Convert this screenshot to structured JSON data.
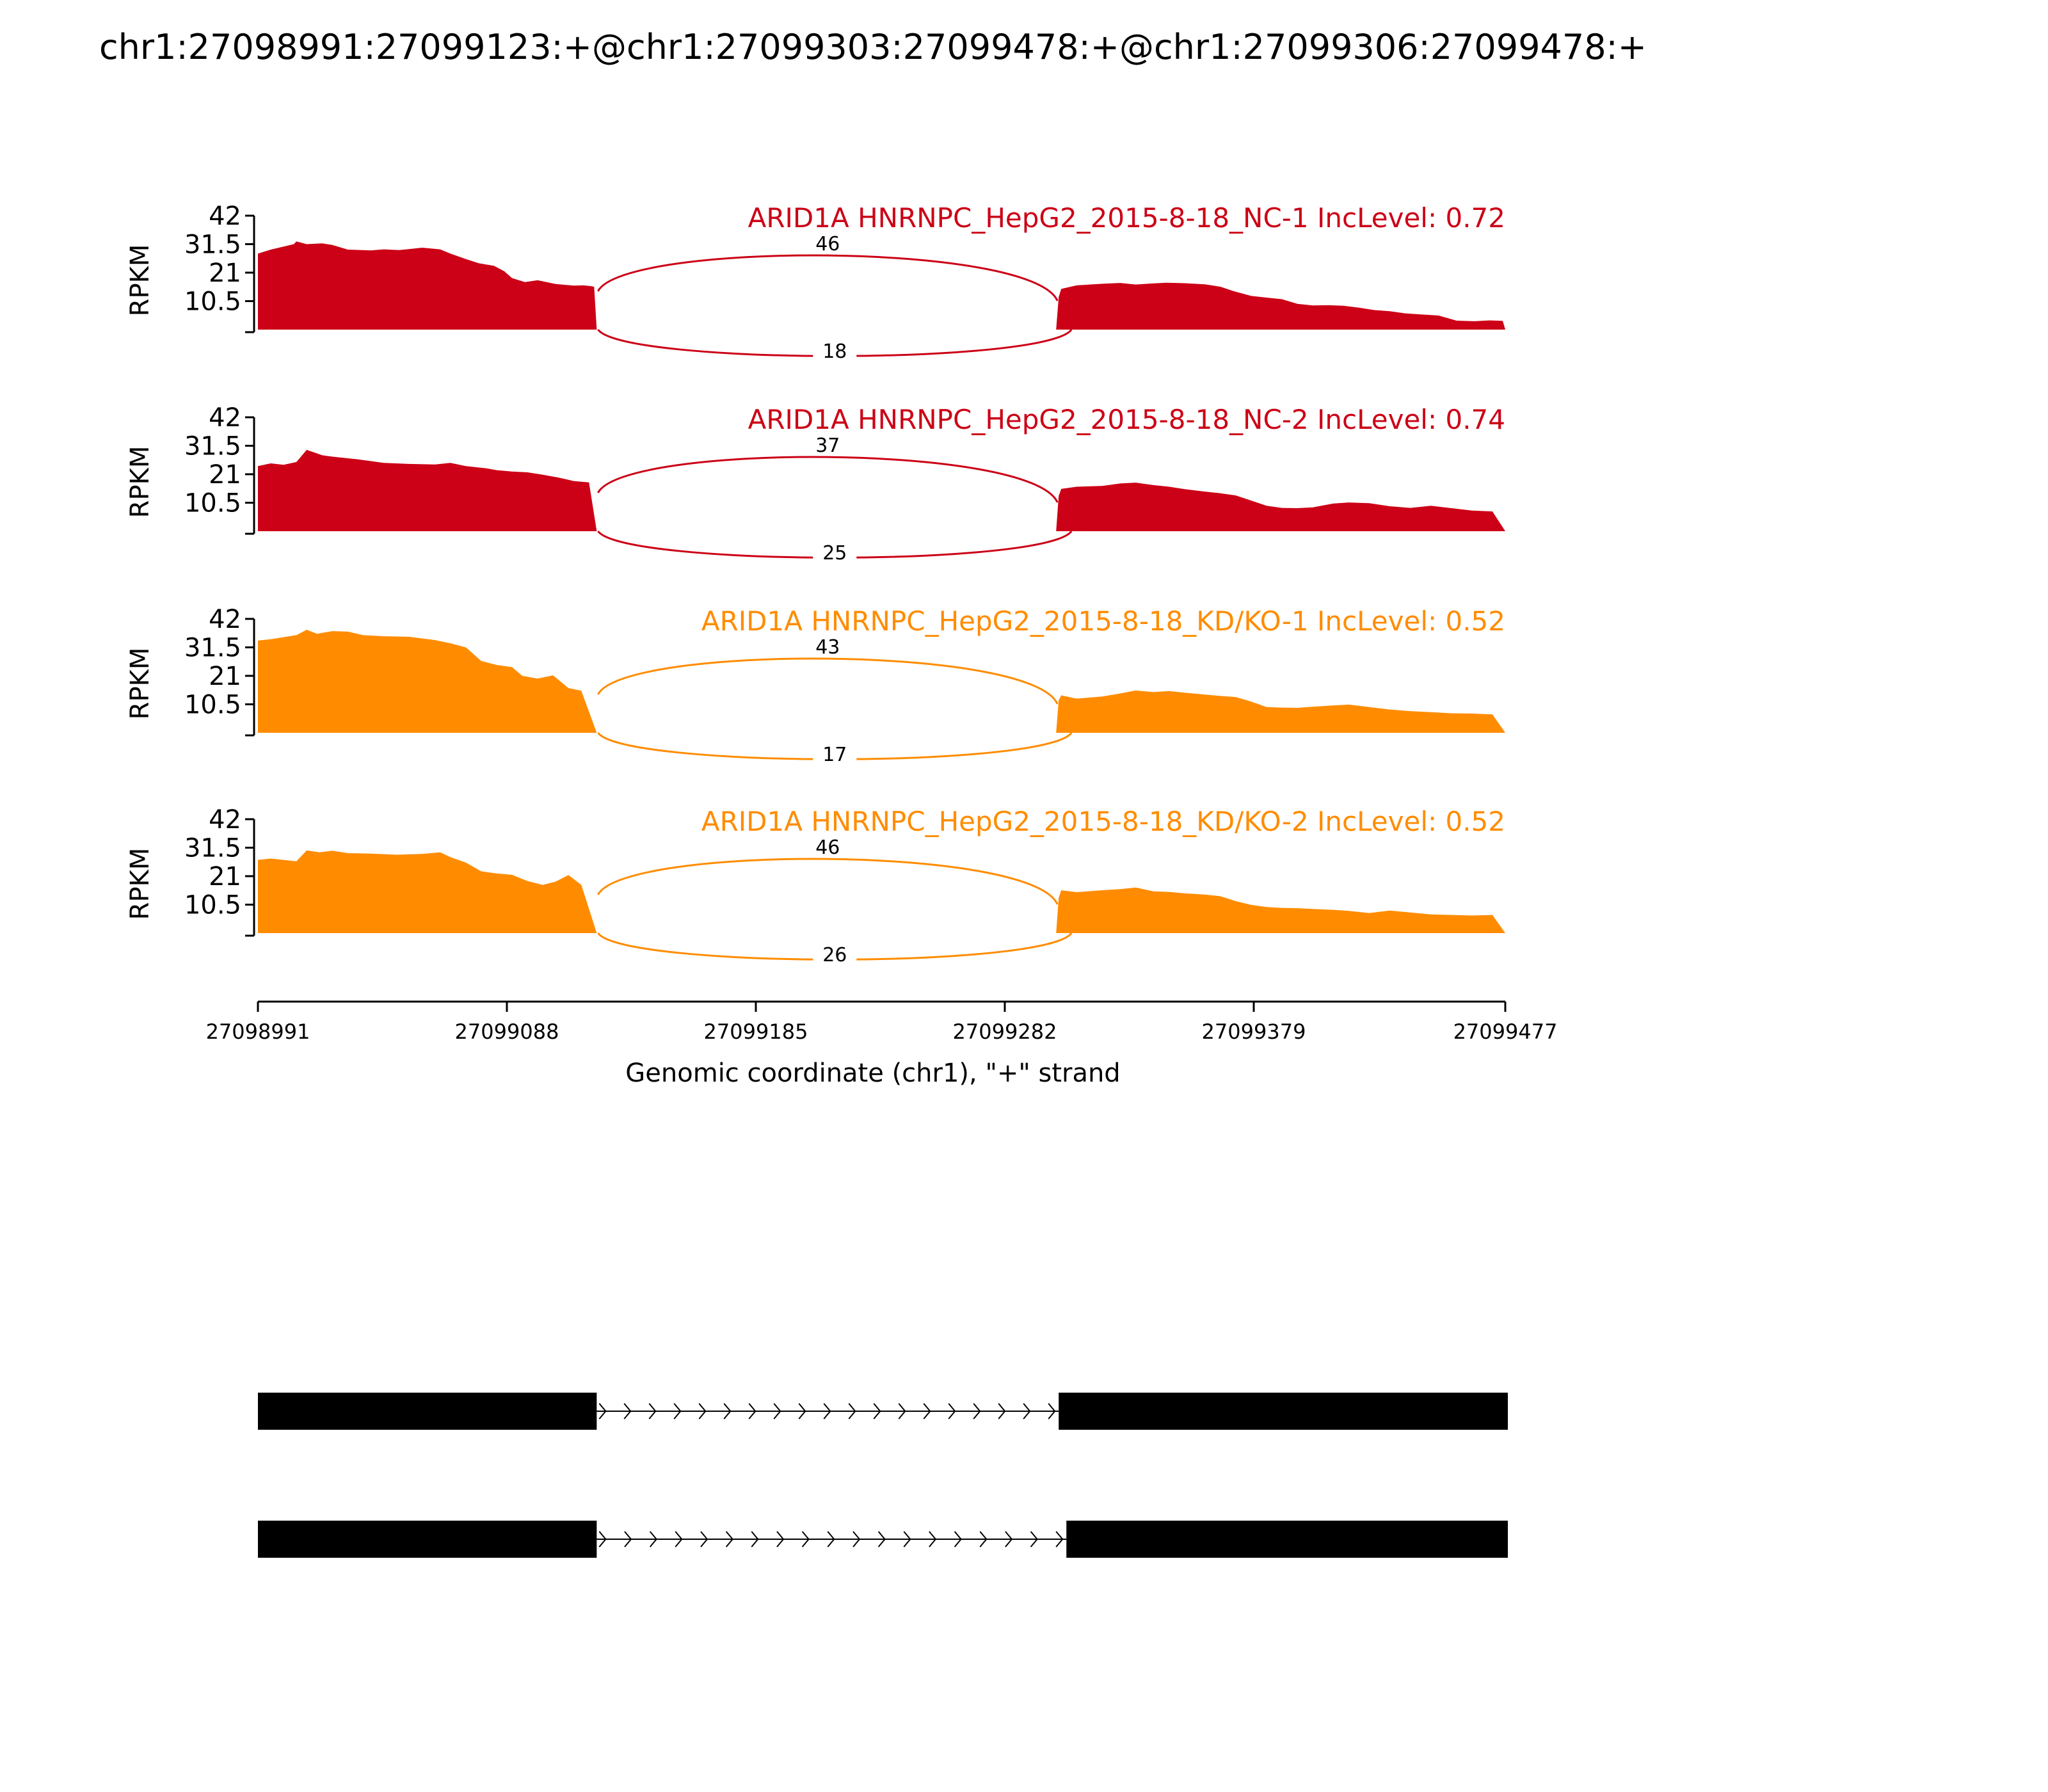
{
  "chart_data": {
    "type": "area",
    "title": "chr1:27098991:27099123:+@chr1:27099303:27099478:+@chr1:27099306:27099478:+",
    "xlabel": "Genomic coordinate (chr1), \"+\" strand",
    "ylabel": "RPKM",
    "xlim": [
      27098991,
      27099477
    ],
    "x_ticks": [
      27098991,
      27099088,
      27099185,
      27099282,
      27099379,
      27099477
    ],
    "ylim": [
      0,
      42
    ],
    "y_ticks": [
      "42",
      "31.5",
      "21",
      "10.5"
    ],
    "y_tick_values": [
      42,
      31.5,
      21,
      10.5
    ],
    "colors": {
      "NC": "#cc0016",
      "KD": "#ff8c00"
    },
    "tracks": [
      {
        "name": "ARID1A HNRNPC_HepG2_2015-8-18_NC-1 IncLevel: 0.72",
        "color": "#cc0016",
        "junction_top": 46,
        "junction_bottom": 18,
        "x": [
          27098991,
          27098996,
          27099005,
          27099006,
          27099010,
          27099016,
          27099020,
          27099026,
          27099035,
          27099040,
          27099046,
          27099055,
          27099062,
          27099066,
          27099072,
          27099077,
          27099083,
          27099087,
          27099090,
          27099095,
          27099100,
          27099107,
          27099114,
          27099118,
          27099121,
          27099122,
          27099123,
          27099302,
          27099303,
          27099304,
          27099310,
          27099320,
          27099327,
          27099333,
          27099339,
          27099345,
          27099352,
          27099360,
          27099366,
          27099371,
          27099378,
          27099384,
          27099390,
          27099396,
          27099402,
          27099408,
          27099414,
          27099420,
          27099426,
          27099432,
          27099438,
          27099444,
          27099451,
          27099458,
          27099465,
          27099471,
          27099476,
          27099477
        ],
        "y": [
          28,
          29.5,
          31.5,
          32.5,
          31.5,
          31.8,
          31.2,
          29.5,
          29.2,
          29.6,
          29.3,
          30.2,
          29.6,
          28,
          26,
          24.5,
          23.5,
          21.5,
          19,
          17.5,
          18.2,
          16.8,
          16.2,
          16.3,
          16,
          15.8,
          0,
          0,
          12,
          15,
          16.3,
          16.9,
          17.2,
          16.6,
          17,
          17.3,
          17.1,
          16.7,
          15.8,
          14.2,
          12.4,
          11.8,
          11.2,
          9.5,
          8.9,
          9,
          8.8,
          8.1,
          7.2,
          6.8,
          6,
          5.6,
          5.2,
          3.3,
          3.1,
          3.4,
          3.2,
          0
        ]
      },
      {
        "name": "ARID1A HNRNPC_HepG2_2015-8-18_NC-2 IncLevel: 0.74",
        "color": "#cc0016",
        "junction_top": 37,
        "junction_bottom": 25,
        "x": [
          27098991,
          27098996,
          27099001,
          27099006,
          27099010,
          27099016,
          27099020,
          27099030,
          27099040,
          27099050,
          27099060,
          27099066,
          27099072,
          27099080,
          27099084,
          27099090,
          27099096,
          27099102,
          27099108,
          27099114,
          27099120,
          27099123,
          27099302,
          27099303,
          27099304,
          27099310,
          27099320,
          27099327,
          27099333,
          27099340,
          27099346,
          27099352,
          27099360,
          27099366,
          27099372,
          27099378,
          27099384,
          27099390,
          27099396,
          27099402,
          27099410,
          27099416,
          27099424,
          27099432,
          27099440,
          27099448,
          27099456,
          27099464,
          27099472,
          27099477
        ],
        "y": [
          24,
          25,
          24.5,
          25.5,
          30,
          28,
          27.5,
          26.5,
          25.2,
          24.8,
          24.6,
          25.2,
          24,
          23.2,
          22.5,
          22,
          21.7,
          20.8,
          19.8,
          18.5,
          18,
          0,
          0,
          13,
          15.6,
          16.4,
          16.7,
          17.6,
          17.9,
          17,
          16.4,
          15.5,
          14.6,
          14,
          13.2,
          11.3,
          9.4,
          8.6,
          8.5,
          8.8,
          10.2,
          10.6,
          10.3,
          9.2,
          8.6,
          9.4,
          8.5,
          7.6,
          7.3,
          0
        ]
      },
      {
        "name": "ARID1A HNRNPC_HepG2_2015-8-18_KD/KO-1 IncLevel: 0.52",
        "color": "#ff8c00",
        "junction_top": 43,
        "junction_bottom": 17,
        "x": [
          27098991,
          27098996,
          27099006,
          27099010,
          27099014,
          27099020,
          27099026,
          27099032,
          27099040,
          27099050,
          27099060,
          27099066,
          27099072,
          27099078,
          27099084,
          27099090,
          27099094,
          27099100,
          27099106,
          27099112,
          27099117,
          27099123,
          27099302,
          27099303,
          27099304,
          27099310,
          27099320,
          27099327,
          27099333,
          27099340,
          27099346,
          27099352,
          27099360,
          27099366,
          27099372,
          27099378,
          27099384,
          27099390,
          27099396,
          27099402,
          27099410,
          27099416,
          27099424,
          27099432,
          27099440,
          27099448,
          27099456,
          27099464,
          27099472,
          27099477
        ],
        "y": [
          34,
          34.5,
          36,
          38,
          36.5,
          37.5,
          37.3,
          36,
          35.6,
          35.4,
          34.2,
          33,
          31.5,
          26.5,
          25,
          24.2,
          21,
          20,
          21.2,
          16.5,
          15.5,
          0,
          0,
          12,
          13.8,
          12.6,
          13.4,
          14.5,
          15.6,
          15,
          15.4,
          14.8,
          14.1,
          13.6,
          13.2,
          11.5,
          9.5,
          9.3,
          9.2,
          9.6,
          10.1,
          10.4,
          9.5,
          8.6,
          8,
          7.6,
          7.2,
          7.1,
          6.8,
          0
        ]
      },
      {
        "name": "ARID1A HNRNPC_HepG2_2015-8-18_KD/KO-2 IncLevel: 0.52",
        "color": "#ff8c00",
        "junction_top": 46,
        "junction_bottom": 26,
        "x": [
          27098991,
          27098996,
          27099006,
          27099010,
          27099015,
          27099020,
          27099026,
          27099035,
          27099045,
          27099055,
          27099062,
          27099066,
          27099072,
          27099078,
          27099084,
          27099090,
          27099096,
          27099102,
          27099107,
          27099112,
          27099117,
          27099123,
          27099302,
          27099303,
          27099304,
          27099310,
          27099320,
          27099327,
          27099333,
          27099340,
          27099346,
          27099352,
          27099360,
          27099366,
          27099372,
          27099378,
          27099384,
          27099390,
          27099396,
          27099402,
          27099410,
          27099416,
          27099424,
          27099432,
          27099440,
          27099448,
          27099456,
          27099464,
          27099472,
          27099477
        ],
        "y": [
          27,
          27.5,
          26.5,
          30.5,
          29.8,
          30.4,
          29.5,
          29.3,
          28.9,
          29.2,
          29.8,
          28,
          26,
          22.8,
          22,
          21.5,
          19.2,
          17.8,
          19,
          21.4,
          17.8,
          0,
          0,
          13,
          15.8,
          15.1,
          15.8,
          16.2,
          16.8,
          15.4,
          15.2,
          14.7,
          14.2,
          13.6,
          11.8,
          10.4,
          9.6,
          9.3,
          9.2,
          8.9,
          8.6,
          8.2,
          7.4,
          8.3,
          7.6,
          6.9,
          6.7,
          6.5,
          6.7,
          0
        ]
      }
    ],
    "isoforms": [
      {
        "exons": [
          [
            27098991,
            27099123
          ],
          [
            27099303,
            27099478
          ]
        ]
      },
      {
        "exons": [
          [
            27098991,
            27099123
          ],
          [
            27099306,
            27099478
          ]
        ]
      }
    ]
  }
}
